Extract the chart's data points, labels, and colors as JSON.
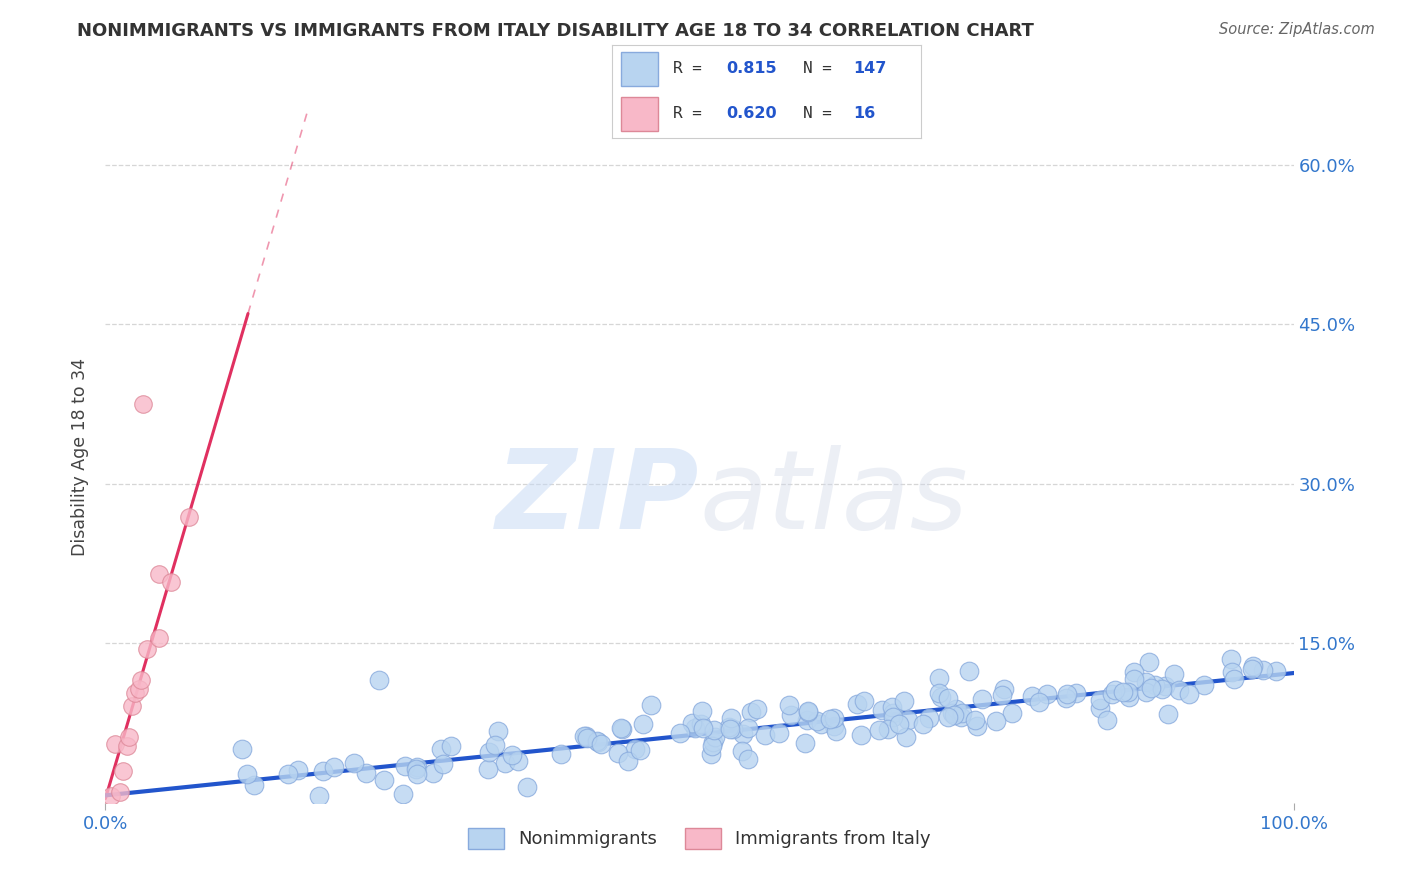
{
  "title": "NONIMMIGRANTS VS IMMIGRANTS FROM ITALY DISABILITY AGE 18 TO 34 CORRELATION CHART",
  "source": "Source: ZipAtlas.com",
  "ylabel": "Disability Age 18 to 34",
  "blue_R": 0.815,
  "blue_N": 147,
  "pink_R": 0.62,
  "pink_N": 16,
  "blue_color": "#b8d4f0",
  "pink_color": "#f8b8c8",
  "blue_line_color": "#2255cc",
  "pink_line_color": "#e03060",
  "blue_scatter_edge": "#88aadd",
  "pink_scatter_edge": "#dd8898",
  "legend_label_blue": "Nonimmigrants",
  "legend_label_pink": "Immigrants from Italy",
  "xlim": [
    0,
    1.0
  ],
  "ylim": [
    0,
    0.65
  ],
  "yticks": [
    0.0,
    0.15,
    0.3,
    0.45,
    0.6
  ],
  "ytick_labels": [
    "",
    "15.0%",
    "30.0%",
    "45.0%",
    "60.0%"
  ],
  "xtick_labels": [
    "0.0%",
    "100.0%"
  ],
  "watermark_zip": "ZIP",
  "watermark_atlas": "atlas",
  "blue_slope": 0.115,
  "blue_intercept": 0.007,
  "pink_slope": 3.8,
  "pink_intercept": 0.004,
  "background_color": "#ffffff",
  "grid_color": "#cccccc",
  "title_color": "#333333",
  "axis_label_color": "#444444",
  "tick_label_color": "#3377cc",
  "seed": 42
}
